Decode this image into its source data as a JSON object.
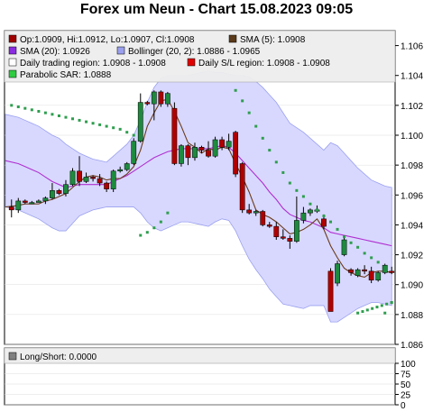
{
  "title": "Forex um Neun - Chart 15.08.2023 09:05",
  "legend": [
    {
      "label": "Op:1.0909, Hi:1.0912, Lo:1.0907, Cl:1.0908",
      "color": "#a00000"
    },
    {
      "label": "SMA (5): 1.0908",
      "color": "#5a3a1a"
    },
    {
      "label": "SMA (20): 1.0926",
      "color": "#8a2be2"
    },
    {
      "label": "Bollinger (20, 2): 1.0886 - 1.0965",
      "color": "#9aa0ee"
    },
    {
      "label": "Daily trading region: 1.0908 - 1.0908",
      "color": "#ffffff"
    },
    {
      "label": "Daily S/L region: 1.0908 - 1.0908",
      "color": "#e00000"
    },
    {
      "label": "Parabolic SAR: 1.0888",
      "color": "#2ecc40"
    }
  ],
  "lower_legend": {
    "label": "Long/Short: 0.0000",
    "color": "#808080"
  },
  "colors": {
    "up": "#1e8a3e",
    "down": "#b00000",
    "sma5": "#6b3b1b",
    "sma20": "#b030d0",
    "bollinger_fill": "#d8d8ff",
    "bollinger_edge": "#9aa0ee",
    "sar": "#2e9e4e"
  },
  "chart_data": [
    {
      "type": "candlestick",
      "ylim": [
        1.086,
        1.107
      ],
      "yticks": [
        "1.106",
        "1.104",
        "1.102",
        "1.100",
        "1.098",
        "1.096",
        "1.094",
        "1.092",
        "1.090",
        "1.088",
        "1.086"
      ],
      "candles": [
        {
          "o": 1.0952,
          "h": 1.0957,
          "l": 1.0945,
          "c": 1.095
        },
        {
          "o": 1.095,
          "h": 1.0958,
          "l": 1.0948,
          "c": 1.0956
        },
        {
          "o": 1.0956,
          "h": 1.0957,
          "l": 1.0954,
          "c": 1.0955
        },
        {
          "o": 1.0955,
          "h": 1.0956,
          "l": 1.0954,
          "c": 1.0955
        },
        {
          "o": 1.0955,
          "h": 1.0957,
          "l": 1.0955,
          "c": 1.0956
        },
        {
          "o": 1.0956,
          "h": 1.0959,
          "l": 1.0954,
          "c": 1.0958
        },
        {
          "o": 1.0958,
          "h": 1.0968,
          "l": 1.0957,
          "c": 1.0963
        },
        {
          "o": 1.0963,
          "h": 1.0964,
          "l": 1.096,
          "c": 1.0961
        },
        {
          "o": 1.0961,
          "h": 1.097,
          "l": 1.0959,
          "c": 1.0967
        },
        {
          "o": 1.0967,
          "h": 1.0978,
          "l": 1.0966,
          "c": 1.0976
        },
        {
          "o": 1.0976,
          "h": 1.0986,
          "l": 1.0966,
          "c": 1.0969
        },
        {
          "o": 1.0969,
          "h": 1.0975,
          "l": 1.0968,
          "c": 1.0972
        },
        {
          "o": 1.0972,
          "h": 1.0973,
          "l": 1.0969,
          "c": 1.0971
        },
        {
          "o": 1.0971,
          "h": 1.0974,
          "l": 1.0966,
          "c": 1.0968
        },
        {
          "o": 1.0968,
          "h": 1.0969,
          "l": 1.0962,
          "c": 1.0964
        },
        {
          "o": 1.0964,
          "h": 1.0977,
          "l": 1.0962,
          "c": 1.0976
        },
        {
          "o": 1.0976,
          "h": 1.0979,
          "l": 1.0975,
          "c": 1.0977
        },
        {
          "o": 1.0977,
          "h": 1.0982,
          "l": 1.0976,
          "c": 1.0981
        },
        {
          "o": 1.0981,
          "h": 1.0998,
          "l": 1.098,
          "c": 1.0996
        },
        {
          "o": 1.0996,
          "h": 1.1028,
          "l": 1.0995,
          "c": 1.1022
        },
        {
          "o": 1.1022,
          "h": 1.1023,
          "l": 1.102,
          "c": 1.1021
        },
        {
          "o": 1.1021,
          "h": 1.103,
          "l": 1.101,
          "c": 1.1029
        },
        {
          "o": 1.1029,
          "h": 1.103,
          "l": 1.1019,
          "c": 1.1021
        },
        {
          "o": 1.1021,
          "h": 1.1029,
          "l": 1.1019,
          "c": 1.1028
        },
        {
          "o": 1.1018,
          "h": 1.1022,
          "l": 1.098,
          "c": 1.0981
        },
        {
          "o": 1.0981,
          "h": 1.0994,
          "l": 1.0979,
          "c": 1.0993
        },
        {
          "o": 1.0993,
          "h": 1.0994,
          "l": 1.098,
          "c": 1.0985
        },
        {
          "o": 1.0985,
          "h": 1.0995,
          "l": 1.0983,
          "c": 1.0992
        },
        {
          "o": 1.0992,
          "h": 1.0993,
          "l": 1.0988,
          "c": 1.099
        },
        {
          "o": 1.099,
          "h": 1.0996,
          "l": 1.0985,
          "c": 1.0986
        },
        {
          "o": 1.0986,
          "h": 1.0999,
          "l": 1.0985,
          "c": 1.0997
        },
        {
          "o": 1.0997,
          "h": 1.0999,
          "l": 1.099,
          "c": 1.0992
        },
        {
          "o": 1.0992,
          "h": 1.1001,
          "l": 1.099,
          "c": 1.0996
        },
        {
          "o": 1.1002,
          "h": 1.1003,
          "l": 1.0972,
          "c": 1.0974
        },
        {
          "o": 1.0981,
          "h": 1.0982,
          "l": 1.0948,
          "c": 1.095
        },
        {
          "o": 1.095,
          "h": 1.0954,
          "l": 1.0947,
          "c": 1.0948
        },
        {
          "o": 1.0948,
          "h": 1.095,
          "l": 1.0946,
          "c": 1.0949
        },
        {
          "o": 1.0949,
          "h": 1.095,
          "l": 1.0939,
          "c": 1.094
        },
        {
          "o": 1.094,
          "h": 1.0942,
          "l": 1.0938,
          "c": 1.0939
        },
        {
          "o": 1.0939,
          "h": 1.0942,
          "l": 1.093,
          "c": 1.0932
        },
        {
          "o": 1.0932,
          "h": 1.0937,
          "l": 1.093,
          "c": 1.0931
        },
        {
          "o": 1.0931,
          "h": 1.0933,
          "l": 1.0924,
          "c": 1.0929
        },
        {
          "o": 1.0929,
          "h": 1.0959,
          "l": 1.0928,
          "c": 1.0943
        },
        {
          "o": 1.0943,
          "h": 1.0952,
          "l": 1.0941,
          "c": 1.0948
        },
        {
          "o": 1.0948,
          "h": 1.0951,
          "l": 1.0946,
          "c": 1.095
        },
        {
          "o": 1.095,
          "h": 1.0953,
          "l": 1.0948,
          "c": 1.095
        },
        {
          "o": 1.0944,
          "h": 1.0947,
          "l": 1.0937,
          "c": 1.0939
        },
        {
          "o": 1.0909,
          "h": 1.0911,
          "l": 1.0882,
          "c": 1.0882
        },
        {
          "o": 1.0901,
          "h": 1.0916,
          "l": 1.0899,
          "c": 1.0914
        },
        {
          "o": 1.092,
          "h": 1.0933,
          "l": 1.0919,
          "c": 1.093
        },
        {
          "o": 1.091,
          "h": 1.0911,
          "l": 1.0906,
          "c": 1.0908
        },
        {
          "o": 1.0906,
          "h": 1.0911,
          "l": 1.0905,
          "c": 1.091
        },
        {
          "o": 1.091,
          "h": 1.0913,
          "l": 1.0907,
          "c": 1.0909
        },
        {
          "o": 1.0909,
          "h": 1.0912,
          "l": 1.0901,
          "c": 1.0903
        },
        {
          "o": 1.0903,
          "h": 1.0909,
          "l": 1.0902,
          "c": 1.0908
        },
        {
          "o": 1.0908,
          "h": 1.0914,
          "l": 1.0907,
          "c": 1.0913
        },
        {
          "o": 1.0909,
          "h": 1.0912,
          "l": 1.0907,
          "c": 1.0908
        }
      ],
      "sma5": [
        1.0952,
        1.0953,
        1.0954,
        1.0954,
        1.0954,
        1.0956,
        1.0957,
        1.0959,
        1.0961,
        1.0965,
        1.0969,
        1.0972,
        1.0973,
        1.0972,
        1.097,
        1.0971,
        1.0971,
        1.0974,
        1.0979,
        1.099,
        1.1006,
        1.1015,
        1.1023,
        1.1024,
        1.1016,
        1.1006,
        1.0995,
        1.0992,
        1.0988,
        1.0991,
        1.099,
        1.0992,
        1.0991,
        1.0981,
        1.0972,
        1.0962,
        1.095,
        1.0947,
        1.0945,
        1.0942,
        1.0938,
        1.0934,
        1.0935,
        1.0937,
        1.094,
        1.0944,
        1.0937,
        1.0926,
        1.0918,
        1.0911,
        1.0908,
        1.0906,
        1.0905,
        1.0908,
        1.0909,
        1.0909,
        1.0908
      ],
      "sma20": [
        1.0983,
        1.0981,
        1.0979,
        1.0977,
        1.0975,
        1.0972,
        1.0969,
        1.0967,
        1.0965,
        1.0966,
        1.0967,
        1.0967,
        1.0967,
        1.0967,
        1.0967,
        1.0969,
        1.0971,
        1.0973,
        1.0976,
        1.0979,
        1.0982,
        1.0985,
        1.0987,
        1.0989,
        1.099,
        1.0991,
        1.0991,
        1.0991,
        1.0991,
        1.0991,
        1.0992,
        1.0993,
        1.0992,
        1.0988,
        1.0983,
        1.0978,
        1.0973,
        1.0968,
        1.0962,
        1.0957,
        1.0951,
        1.0947,
        1.0945,
        1.0943,
        1.0942,
        1.094,
        1.0938,
        1.0935,
        1.0934,
        1.0933,
        1.0932,
        1.0931,
        1.093,
        1.0929,
        1.0928,
        1.0927,
        1.0926
      ],
      "boll_upper": [
        1.1014,
        1.1012,
        1.101,
        1.1008,
        1.1006,
        1.1003,
        1.1,
        1.0998,
        1.0994,
        1.0991,
        1.0988,
        1.0986,
        1.0984,
        1.0983,
        1.0982,
        1.0986,
        1.099,
        1.0994,
        1.1,
        1.101,
        1.1022,
        1.1032,
        1.1038,
        1.104,
        1.104,
        1.104,
        1.104,
        1.1041,
        1.1042,
        1.1043,
        1.1042,
        1.1042,
        1.1041,
        1.104,
        1.104,
        1.1039,
        1.1036,
        1.1032,
        1.1027,
        1.1022,
        1.1015,
        1.1008,
        1.1005,
        1.1002,
        1.0998,
        1.0994,
        1.099,
        1.0995,
        1.0993,
        1.0988,
        1.0983,
        1.0978,
        1.0974,
        1.097,
        1.0968,
        1.0966,
        1.0965
      ],
      "boll_lower": [
        1.0952,
        1.095,
        1.0948,
        1.0946,
        1.0944,
        1.0941,
        1.0938,
        1.0936,
        1.0936,
        1.0941,
        1.0946,
        1.0948,
        1.095,
        1.0951,
        1.0952,
        1.0952,
        1.0952,
        1.0952,
        1.0952,
        1.0948,
        1.0942,
        1.0938,
        1.0936,
        1.0938,
        1.094,
        1.0942,
        1.0942,
        1.0941,
        1.094,
        1.0939,
        1.0942,
        1.0944,
        1.0943,
        1.0936,
        1.0926,
        1.0917,
        1.091,
        1.0904,
        1.0897,
        1.0892,
        1.0887,
        1.0886,
        1.0885,
        1.0884,
        1.0886,
        1.0886,
        1.0886,
        1.0875,
        1.0875,
        1.0878,
        1.0881,
        1.0884,
        1.0886,
        1.0888,
        1.0888,
        1.0887,
        1.0886
      ],
      "sar": [
        {
          "i": 0,
          "v": 1.102
        },
        {
          "i": 1,
          "v": 1.1019
        },
        {
          "i": 2,
          "v": 1.1018
        },
        {
          "i": 3,
          "v": 1.1017
        },
        {
          "i": 4,
          "v": 1.1016
        },
        {
          "i": 5,
          "v": 1.1015
        },
        {
          "i": 6,
          "v": 1.1014
        },
        {
          "i": 7,
          "v": 1.1013
        },
        {
          "i": 8,
          "v": 1.1012
        },
        {
          "i": 9,
          "v": 1.1011
        },
        {
          "i": 10,
          "v": 1.101
        },
        {
          "i": 11,
          "v": 1.1009
        },
        {
          "i": 12,
          "v": 1.1008
        },
        {
          "i": 13,
          "v": 1.1007
        },
        {
          "i": 14,
          "v": 1.1006
        },
        {
          "i": 15,
          "v": 1.1005
        },
        {
          "i": 16,
          "v": 1.1004
        },
        {
          "i": 17,
          "v": 1.1002
        },
        {
          "i": 18,
          "v": 1.1
        },
        {
          "i": 19,
          "v": 1.0933
        },
        {
          "i": 20,
          "v": 1.0935
        },
        {
          "i": 21,
          "v": 1.0938
        },
        {
          "i": 22,
          "v": 1.0942
        },
        {
          "i": 23,
          "v": 1.0948
        },
        {
          "i": 33,
          "v": 1.103
        },
        {
          "i": 34,
          "v": 1.1023
        },
        {
          "i": 35,
          "v": 1.1015
        },
        {
          "i": 36,
          "v": 1.1006
        },
        {
          "i": 37,
          "v": 1.0998
        },
        {
          "i": 38,
          "v": 1.099
        },
        {
          "i": 39,
          "v": 1.0982
        },
        {
          "i": 40,
          "v": 1.0975
        },
        {
          "i": 41,
          "v": 1.0968
        },
        {
          "i": 42,
          "v": 1.0963
        },
        {
          "i": 43,
          "v": 1.0959
        },
        {
          "i": 44,
          "v": 1.0954
        },
        {
          "i": 45,
          "v": 1.095
        },
        {
          "i": 46,
          "v": 1.0946
        },
        {
          "i": 47,
          "v": 1.0942
        },
        {
          "i": 48,
          "v": 1.0937
        },
        {
          "i": 49,
          "v": 1.0932
        },
        {
          "i": 50,
          "v": 1.0928
        },
        {
          "i": 51,
          "v": 1.0925
        },
        {
          "i": 52,
          "v": 1.0921
        },
        {
          "i": 53,
          "v": 1.0918
        },
        {
          "i": 54,
          "v": 1.0915
        },
        {
          "i": 55,
          "v": 1.0881
        },
        {
          "i": 56,
          "v": 1.0888
        }
      ],
      "sar_tail": [
        1.0881,
        1.0882,
        1.0883,
        1.0884,
        1.0885,
        1.0886,
        1.0887,
        1.0888
      ]
    },
    {
      "type": "line",
      "ylim": [
        0,
        100
      ],
      "yticks": [
        "100",
        "75",
        "50",
        "25",
        "0"
      ],
      "series": []
    }
  ]
}
